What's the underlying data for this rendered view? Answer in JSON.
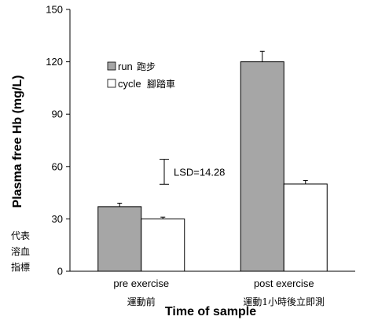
{
  "chart_data": {
    "type": "bar",
    "categories": [
      "pre exercise",
      "post exercise"
    ],
    "category_notes": [
      "運動前",
      "運動1小時後立即測"
    ],
    "series": [
      {
        "name": "run",
        "name_note": "跑步",
        "values": [
          37,
          120
        ],
        "errors": [
          2,
          6
        ],
        "color": "#a6a6a6"
      },
      {
        "name": "cycle",
        "name_note": "腳踏車",
        "values": [
          30,
          50
        ],
        "errors": [
          1,
          2
        ],
        "color": "#ffffff"
      }
    ],
    "ylabel": "Plasma free Hb (mg/L)",
    "ylabel_note": [
      "代表",
      "溶血",
      "指標"
    ],
    "xlabel": "Time of sample",
    "ylim": [
      0,
      150
    ],
    "yticks": [
      0,
      30,
      60,
      90,
      120,
      150
    ],
    "annotation": {
      "label": "LSD=14.28",
      "value": 14.28,
      "center": 57
    },
    "legend_position": "top-left",
    "grid": false
  }
}
